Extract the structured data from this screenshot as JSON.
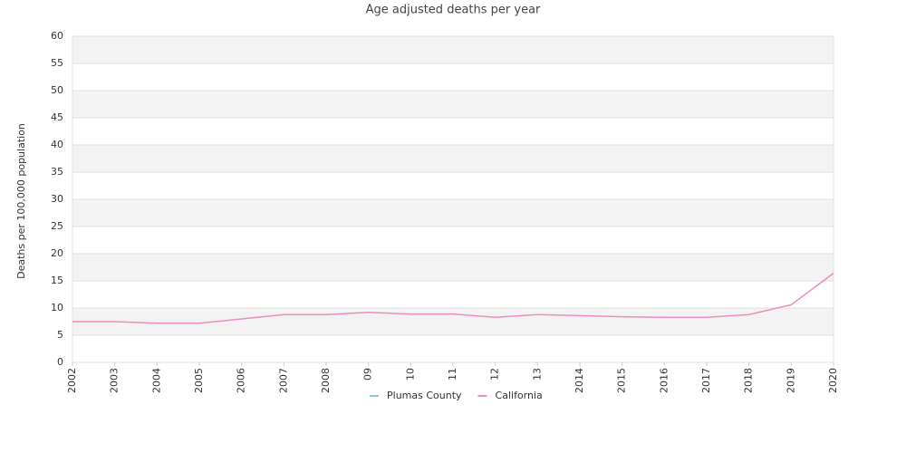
{
  "chart_data": {
    "type": "line",
    "title": "Age adjusted deaths per year",
    "y_label": "Deaths per 100,000 population",
    "categories": [
      "2002",
      "2003",
      "2004",
      "2005",
      "2006",
      "2007",
      "2008",
      "09",
      "10",
      "11",
      "12",
      "13",
      "2014",
      "2015",
      "2016",
      "2017",
      "2018",
      "2019",
      "2020"
    ],
    "series": [
      {
        "name": "Plumas County",
        "color": "#7ec8e3",
        "values": [
          null,
          null,
          null,
          null,
          null,
          null,
          null,
          null,
          null,
          null,
          null,
          null,
          null,
          null,
          null,
          null,
          null,
          null,
          null
        ]
      },
      {
        "name": "California",
        "color": "#f28cc0",
        "values": [
          7.5,
          7.5,
          7.2,
          7.2,
          8.0,
          8.8,
          8.8,
          9.2,
          8.9,
          8.9,
          8.3,
          8.8,
          8.6,
          8.4,
          8.3,
          8.3,
          8.8,
          10.6,
          16.4
        ]
      }
    ],
    "ylim": [
      0,
      60
    ],
    "yticks": [
      0,
      5,
      10,
      15,
      20,
      25,
      30,
      35,
      40,
      45,
      50,
      55,
      60
    ],
    "grid": true,
    "legend": "bottom"
  }
}
